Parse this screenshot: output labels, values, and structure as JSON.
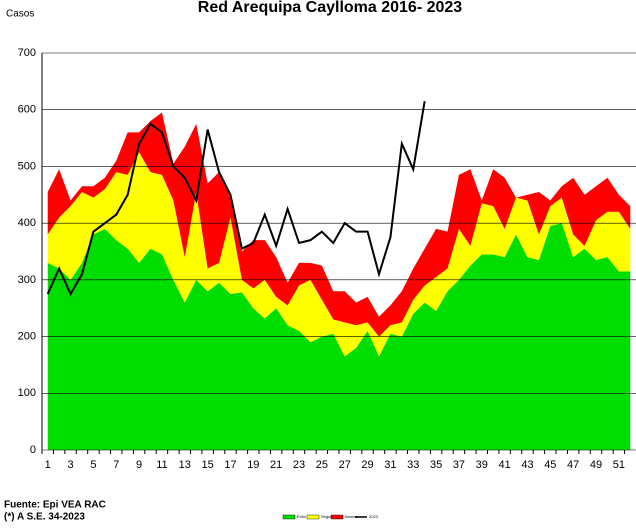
{
  "chart_data": {
    "type": "stacked_area",
    "title": "Red Arequipa Caylloma 2016- 2023",
    "y_label": "Casos",
    "source": "Fuente: Epi VEA RAC",
    "note": "(*) A S.E. 34-2023",
    "categories": [
      1,
      null,
      3,
      null,
      5,
      null,
      7,
      null,
      9,
      null,
      11,
      null,
      13,
      null,
      15,
      null,
      17,
      null,
      19,
      null,
      21,
      null,
      23,
      null,
      25,
      null,
      27,
      null,
      29,
      null,
      31,
      null,
      33,
      null,
      35,
      null,
      37,
      null,
      39,
      null,
      41,
      null,
      43,
      null,
      45,
      null,
      47,
      null,
      49,
      null,
      51,
      null
    ],
    "ylim": [
      0,
      700
    ],
    "yticks": [
      0,
      100,
      200,
      300,
      400,
      500,
      600,
      700
    ],
    "grid": true,
    "series": [
      {
        "name": "Éxito",
        "color": "#00dd00",
        "values": [
          330,
          320,
          300,
          330,
          380,
          390,
          370,
          355,
          330,
          355,
          345,
          300,
          260,
          300,
          280,
          295,
          275,
          278,
          250,
          232,
          250,
          220,
          210,
          190,
          200,
          205,
          165,
          180,
          210,
          165,
          205,
          200,
          240,
          260,
          245,
          280,
          300,
          325,
          345,
          345,
          340,
          380,
          340,
          335,
          395,
          400,
          340,
          355,
          335,
          340,
          315,
          315
        ]
      },
      {
        "name": "Seguridad",
        "color": "#ffff00",
        "values": [
          50,
          90,
          130,
          125,
          65,
          70,
          120,
          130,
          195,
          135,
          140,
          140,
          80,
          155,
          40,
          35,
          135,
          22,
          35,
          68,
          20,
          35,
          80,
          110,
          65,
          25,
          60,
          40,
          15,
          35,
          15,
          25,
          25,
          30,
          60,
          40,
          90,
          35,
          90,
          85,
          50,
          65,
          100,
          45,
          35,
          45,
          40,
          5,
          70,
          80,
          105,
          75
        ]
      },
      {
        "name": "Alarma",
        "color": "#ff0000",
        "values": [
          75,
          85,
          10,
          10,
          20,
          20,
          20,
          75,
          35,
          90,
          110,
          65,
          195,
          120,
          150,
          160,
          35,
          50,
          85,
          70,
          70,
          40,
          40,
          30,
          60,
          50,
          55,
          40,
          45,
          35,
          35,
          55,
          55,
          65,
          85,
          65,
          95,
          135,
          5,
          65,
          90,
          0,
          10,
          75,
          10,
          20,
          100,
          90,
          60,
          60,
          30,
          40
        ]
      },
      {
        "type": "line",
        "name": "2023",
        "color": "#000000",
        "values": [
          275,
          320,
          275,
          310,
          385,
          400,
          415,
          450,
          540,
          575,
          560,
          500,
          480,
          440,
          565,
          490,
          450,
          355,
          365,
          415,
          360,
          425,
          365,
          370,
          385,
          365,
          400,
          385,
          385,
          310,
          375,
          540,
          495,
          615,
          null,
          null,
          null,
          null,
          null,
          null,
          null,
          null,
          null,
          null,
          null,
          null,
          null,
          null,
          null,
          null,
          null,
          null
        ]
      }
    ]
  }
}
